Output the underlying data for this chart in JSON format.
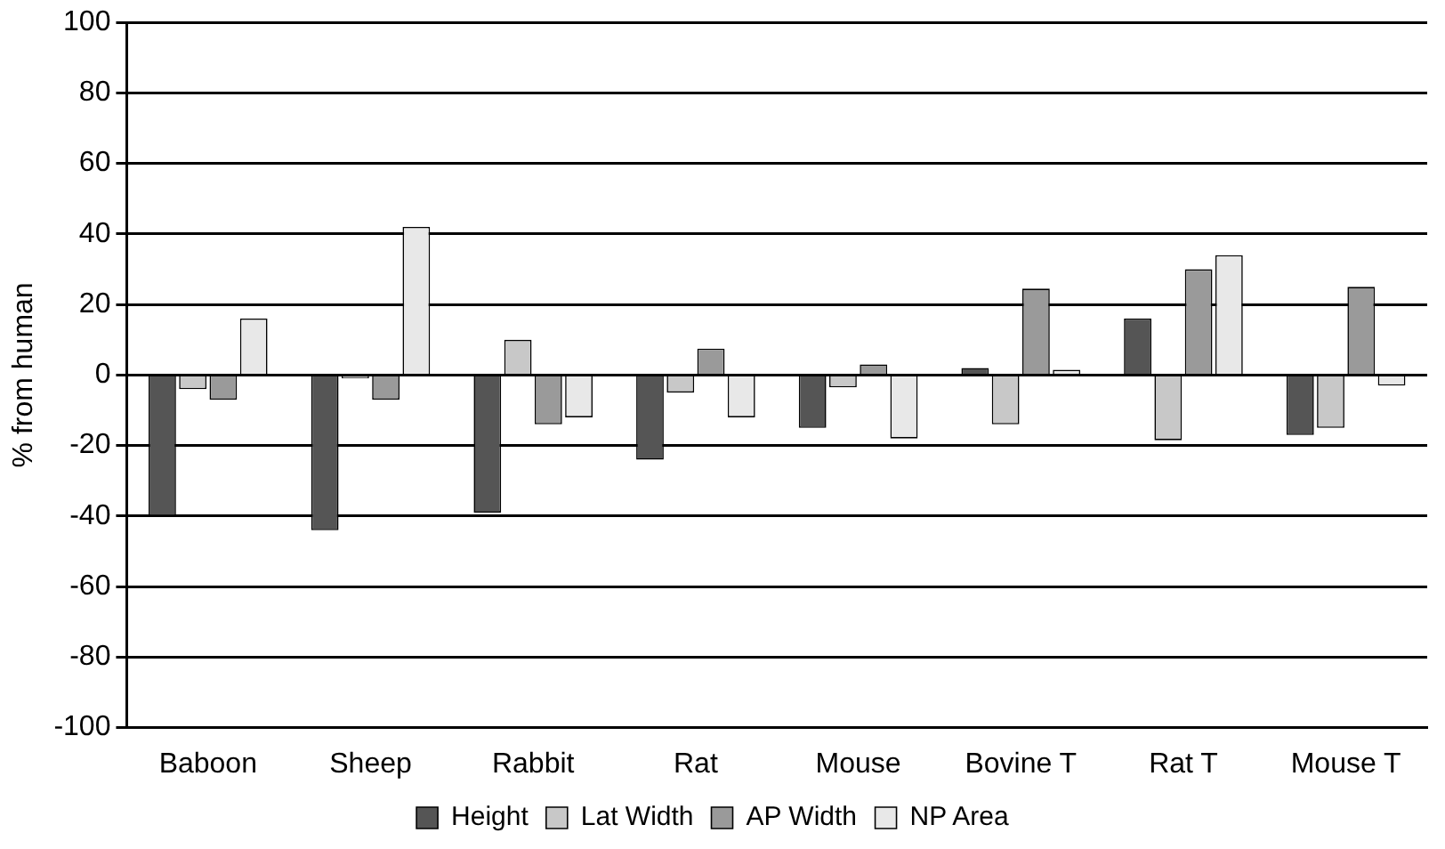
{
  "chart_data": {
    "type": "bar",
    "ylabel": "% from human",
    "categories": [
      "Baboon",
      "Sheep",
      "Rabbit",
      "Rat",
      "Mouse",
      "Bovine T",
      "Rat T",
      "Mouse T"
    ],
    "series": [
      {
        "name": "Height",
        "color": "#555555",
        "values": [
          -40,
          -44,
          -39,
          -24,
          -15,
          2,
          16,
          -17
        ]
      },
      {
        "name": "Lat Width",
        "color": "#c8c8c8",
        "values": [
          -4,
          -1,
          10,
          -5,
          -3.5,
          -14,
          -18.5,
          -15
        ]
      },
      {
        "name": "AP Width",
        "color": "#9a9a9a",
        "values": [
          -7,
          -7,
          -14,
          7.5,
          3,
          24.5,
          30,
          25
        ]
      },
      {
        "name": "NP Area",
        "color": "#e8e8e8",
        "values": [
          16,
          42,
          -12,
          -12,
          -18,
          1.5,
          34,
          -3
        ]
      }
    ],
    "ylim": [
      -100,
      100
    ],
    "yticks": [
      -100,
      -80,
      -60,
      -40,
      -20,
      0,
      20,
      40,
      60,
      80,
      100
    ],
    "grid": "y",
    "legend": "bottom"
  }
}
